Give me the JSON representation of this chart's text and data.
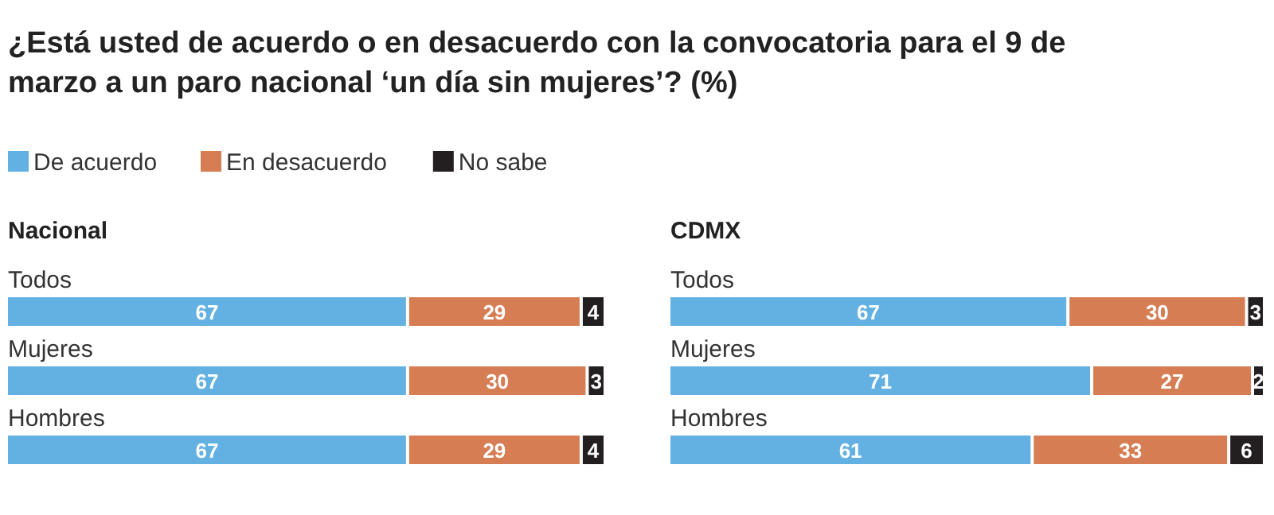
{
  "chart_data": [
    {
      "type": "bar",
      "orientation": "horizontal",
      "stacked": true,
      "data_labels": true,
      "legend": "top left",
      "title": "¿Está usted de acuerdo o en desacuerdo con la convocatoria para el 9 de marzo a un paro nacional ‘un día sin mujeres’? (%)",
      "subtitle": "Nacional",
      "categories": [
        "Todos",
        "Mujeres",
        "Hombres"
      ],
      "series": [
        {
          "name": "De acuerdo",
          "color": "#63b1e2",
          "values": [
            67,
            67,
            67
          ]
        },
        {
          "name": "En desacuerdo",
          "color": "#d67d53",
          "values": [
            29,
            30,
            29
          ]
        },
        {
          "name": "No sabe",
          "color": "#231f20",
          "values": [
            4,
            3,
            4
          ]
        }
      ]
    },
    {
      "type": "bar",
      "orientation": "horizontal",
      "stacked": true,
      "data_labels": true,
      "title": "CDMX",
      "categories": [
        "Todos",
        "Mujeres",
        "Hombres"
      ],
      "series": [
        {
          "color": "#63b1e2",
          "values": [
            67,
            71,
            61
          ]
        },
        {
          "color": "#d67d53",
          "values": [
            30,
            27,
            33
          ]
        },
        {
          "color": "#231f20",
          "values": [
            3,
            2,
            6
          ]
        }
      ]
    }
  ]
}
